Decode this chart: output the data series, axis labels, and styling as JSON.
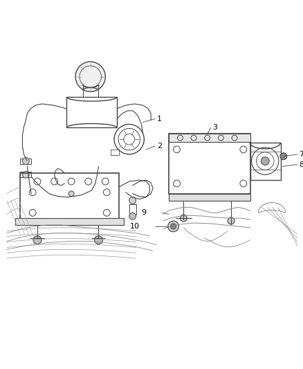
{
  "background_color": "#ffffff",
  "line_color": "#444444",
  "label_color": "#000000",
  "figure_width": 4.38,
  "figure_height": 5.33,
  "dpi": 100
}
